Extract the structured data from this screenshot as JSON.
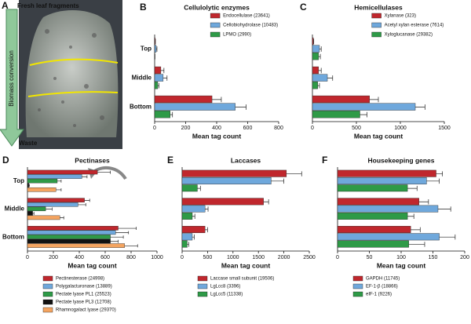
{
  "photo_panel": {
    "label": "A",
    "top_label": "Fresh leaf fragments",
    "arrow_label": "Biomass conversion",
    "bottom_label": "Waste"
  },
  "chart_data": [
    {
      "type": "hbar",
      "label": "B",
      "title": "Cellulolytic enzymes",
      "xlabel": "Mean tag count",
      "categories": [
        "Top",
        "Middle",
        "Bottom"
      ],
      "legend": "upper right",
      "xlim": [
        0,
        800
      ],
      "xticks": [
        0,
        200,
        400,
        600,
        800
      ],
      "series": [
        {
          "name": "Endocellulase (23641)",
          "color": "#c0272d",
          "values": [
            3,
            40,
            370
          ],
          "errors": [
            2,
            20,
            60
          ]
        },
        {
          "name": "Cellobiohydrolase (10483)",
          "color": "#6fa8dc",
          "values": [
            10,
            55,
            520
          ],
          "errors": [
            5,
            25,
            70
          ]
        },
        {
          "name": "LPMO (2990)",
          "color": "#2e9a47",
          "values": [
            1,
            20,
            100
          ],
          "errors": [
            1,
            8,
            15
          ]
        }
      ]
    },
    {
      "type": "hbar",
      "label": "C",
      "title": "Hemicellulases",
      "xlabel": "Mean tag count",
      "categories": [
        null,
        null,
        null
      ],
      "legend": "upper right",
      "xlim": [
        0,
        1500
      ],
      "xticks": [
        0,
        500,
        1000,
        1500
      ],
      "series": [
        {
          "name": "Xylanase (323)",
          "color": "#c0272d",
          "values": [
            10,
            70,
            650
          ],
          "errors": [
            5,
            30,
            100
          ]
        },
        {
          "name": "Acetyl xylan esterase (7614)",
          "color": "#6fa8dc",
          "values": [
            80,
            170,
            1170
          ],
          "errors": [
            20,
            60,
            110
          ]
        },
        {
          "name": "Xyloglucanase (29382)",
          "color": "#2e9a47",
          "values": [
            70,
            60,
            540
          ],
          "errors": [
            20,
            20,
            80
          ]
        }
      ]
    },
    {
      "type": "hbar",
      "label": "D",
      "title": "Pectinases",
      "xlabel": "Mean tag count",
      "categories": [
        "Top",
        "Middle",
        "Bottom"
      ],
      "legend": "below",
      "xlim": [
        0,
        1000
      ],
      "xticks": [
        0,
        200,
        400,
        600,
        800,
        1000
      ],
      "series": [
        {
          "name": "Pectinesterase (24998)",
          "color": "#c0272d",
          "values": [
            540,
            440,
            700
          ],
          "errors": [
            100,
            40,
            140
          ]
        },
        {
          "name": "Polygalacturonase (13889)",
          "color": "#6fa8dc",
          "values": [
            420,
            390,
            680
          ],
          "errors": [
            40,
            60,
            100
          ]
        },
        {
          "name": "Pectate lyase PL1 (25523)",
          "color": "#2e9a47",
          "values": [
            230,
            140,
            640
          ],
          "errors": [
            30,
            50,
            100
          ]
        },
        {
          "name": "Pectate lyase PL3 (12708)",
          "color": "#111111",
          "values": [
            10,
            40,
            640
          ],
          "errors": [
            5,
            10,
            60
          ]
        },
        {
          "name": "Rhamnogalact lyase (29370)",
          "color": "#f4a460",
          "values": [
            220,
            250,
            750
          ],
          "errors": [
            40,
            30,
            100
          ]
        }
      ]
    },
    {
      "type": "hbar",
      "label": "E",
      "title": "Laccases",
      "xlabel": "Mean tag count",
      "categories": [
        null,
        null,
        null
      ],
      "legend": "below",
      "xlim": [
        0,
        2500
      ],
      "xticks": [
        0,
        500,
        1000,
        1500,
        2000,
        2500
      ],
      "series": [
        {
          "name": "Laccase small subunit (19506)",
          "color": "#c0272d",
          "values": [
            2050,
            1600,
            450
          ],
          "errors": [
            300,
            100,
            50
          ]
        },
        {
          "name": "LgLcc8 (3396)",
          "color": "#6fa8dc",
          "values": [
            1750,
            450,
            200
          ],
          "errors": [
            250,
            60,
            40
          ]
        },
        {
          "name": "LgLcc5 (11338)",
          "color": "#2e9a47",
          "values": [
            300,
            200,
            100
          ],
          "errors": [
            60,
            50,
            30
          ]
        }
      ]
    },
    {
      "type": "hbar",
      "label": "F",
      "title": "Housekeeping genes",
      "xlabel": "Mean tag count",
      "categories": [
        null,
        null,
        null
      ],
      "legend": "below",
      "xlim": [
        0,
        200
      ],
      "xticks": [
        0,
        50,
        100,
        150,
        200
      ],
      "series": [
        {
          "name": "GAPDH (11745)",
          "color": "#c0272d",
          "values": [
            155,
            128,
            115
          ],
          "errors": [
            10,
            15,
            15
          ]
        },
        {
          "name": "EF-1-β (18866)",
          "color": "#6fa8dc",
          "values": [
            140,
            158,
            160
          ],
          "errors": [
            20,
            20,
            25
          ]
        },
        {
          "name": "eIF-1 (9226)",
          "color": "#2e9a47",
          "values": [
            110,
            110,
            112
          ],
          "errors": [
            15,
            10,
            25
          ]
        }
      ]
    }
  ]
}
